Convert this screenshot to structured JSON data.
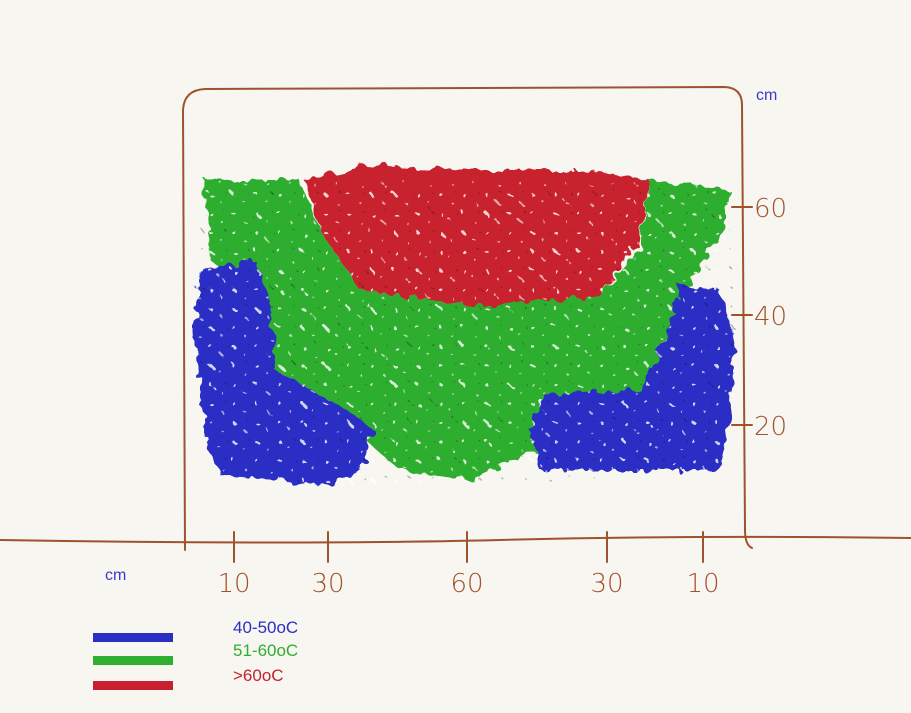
{
  "y_axis": {
    "unit": "cm",
    "ticks": [
      "60",
      "40",
      "20"
    ]
  },
  "x_axis": {
    "unit": "cm",
    "ticks": [
      "10",
      "30",
      "60",
      "30",
      "10"
    ]
  },
  "legend": [
    {
      "label": "40-50oC",
      "color": "#2b2fc4"
    },
    {
      "label": "51-60oC",
      "color": "#2fae2f"
    },
    {
      "label": ">60oC",
      "color": "#c8202e"
    }
  ]
}
